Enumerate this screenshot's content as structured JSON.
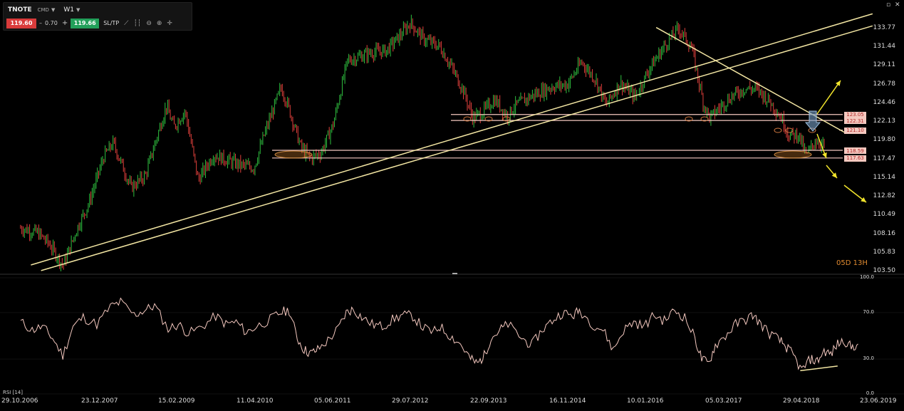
{
  "toolbar": {
    "symbol": "TNOTE",
    "market_type": "CMD",
    "timeframe": "W1",
    "sell_price": "119.60",
    "spread": "0.70",
    "buy_price": "119.66",
    "sltp_label": "SL/TP",
    "tool_icons": [
      "line-icon",
      "chart-style-icon",
      "zoom-out-icon",
      "zoom-in-icon",
      "crosshair-icon"
    ]
  },
  "window_controls": [
    "restore-icon",
    "close-icon"
  ],
  "countdown": "05D 13H",
  "price_boxes": [
    "123.05",
    "122.31",
    "121.10",
    "118.59",
    "117.63"
  ],
  "rsi_title": "RSI [14]",
  "colors": {
    "bull": "#2fbf3f",
    "bear": "#e0403c",
    "trendline": "#f3e6a3",
    "level_line": "#f4c8bf",
    "arrow": "#f2e52c",
    "rsi_line": "#f4c8bf",
    "countdown": "#e08a30",
    "sell_bg": "#d93b3b",
    "buy_bg": "#22a05a"
  },
  "chart_data": [
    {
      "type": "candlestick",
      "title": "TNOTE",
      "timeframe": "W1",
      "x_tick_labels": [
        "29.10.2006",
        "23.12.2007",
        "15.02.2009",
        "11.04.2010",
        "05.06.2011",
        "29.07.2012",
        "22.09.2013",
        "16.11.2014",
        "10.01.2016",
        "05.03.2017",
        "29.04.2018",
        "23.06.2019"
      ],
      "y_tick_labels": [
        "133.77",
        "131.44",
        "129.11",
        "126.78",
        "124.46",
        "122.13",
        "119.80",
        "117.47",
        "115.14",
        "112.82",
        "110.49",
        "108.16",
        "105.83",
        "103.50"
      ],
      "ylim": [
        103.5,
        135.0
      ],
      "close_path": [
        [
          "2006-10-29",
          108.9
        ],
        [
          "2007-02-01",
          108.3
        ],
        [
          "2007-04-01",
          106.9
        ],
        [
          "2007-06-15",
          104.2
        ],
        [
          "2007-09-01",
          109.0
        ],
        [
          "2007-11-01",
          112.0
        ],
        [
          "2008-01-20",
          117.8
        ],
        [
          "2008-03-10",
          119.5
        ],
        [
          "2008-06-15",
          113.9
        ],
        [
          "2008-09-01",
          115.5
        ],
        [
          "2008-12-21",
          124.1
        ],
        [
          "2009-02-01",
          121.5
        ],
        [
          "2009-04-01",
          123.5
        ],
        [
          "2009-06-10",
          114.9
        ],
        [
          "2009-09-01",
          118.0
        ],
        [
          "2009-12-01",
          117.2
        ],
        [
          "2010-02-01",
          116.7
        ],
        [
          "2010-04-05",
          116.4
        ],
        [
          "2010-06-01",
          120.6
        ],
        [
          "2010-08-29",
          126.4
        ],
        [
          "2010-10-01",
          124.5
        ],
        [
          "2010-12-15",
          118.9
        ],
        [
          "2011-02-05",
          117.6
        ],
        [
          "2011-04-01",
          118.3
        ],
        [
          "2011-06-05",
          121.8
        ],
        [
          "2011-08-21",
          129.8
        ],
        [
          "2011-10-15",
          130.2
        ],
        [
          "2012-01-01",
          130.8
        ],
        [
          "2012-03-15",
          131.0
        ],
        [
          "2012-05-30",
          132.9
        ],
        [
          "2012-07-24",
          134.5
        ],
        [
          "2012-10-01",
          132.5
        ],
        [
          "2012-12-30",
          131.5
        ],
        [
          "2013-03-01",
          129.0
        ],
        [
          "2013-05-05",
          126.0
        ],
        [
          "2013-06-25",
          122.6
        ],
        [
          "2013-08-15",
          123.3
        ],
        [
          "2013-10-20",
          124.9
        ],
        [
          "2013-12-30",
          122.8
        ],
        [
          "2014-02-01",
          124.0
        ],
        [
          "2014-05-01",
          125.3
        ],
        [
          "2014-08-20",
          126.5
        ],
        [
          "2014-11-16",
          126.8
        ],
        [
          "2015-02-01",
          129.6
        ],
        [
          "2015-04-15",
          127.4
        ],
        [
          "2015-06-10",
          124.2
        ],
        [
          "2015-08-25",
          127.0
        ],
        [
          "2015-11-15",
          125.2
        ],
        [
          "2016-01-31",
          128.8
        ],
        [
          "2016-04-20",
          131.6
        ],
        [
          "2016-07-05",
          133.8
        ],
        [
          "2016-09-15",
          131.3
        ],
        [
          "2016-11-15",
          124.5
        ],
        [
          "2016-12-20",
          122.6
        ],
        [
          "2017-02-15",
          124.0
        ],
        [
          "2017-04-15",
          125.3
        ],
        [
          "2017-06-25",
          126.3
        ],
        [
          "2017-09-01",
          126.2
        ],
        [
          "2017-11-10",
          124.6
        ],
        [
          "2018-01-10",
          122.6
        ],
        [
          "2018-02-20",
          120.4
        ],
        [
          "2018-04-10",
          120.6
        ],
        [
          "2018-05-20",
          117.9
        ],
        [
          "2018-07-10",
          119.8
        ],
        [
          "2018-09-01",
          119.1
        ]
      ],
      "annotations": {
        "countdown_label": "05D 13H",
        "horizontal_levels": [
          123.05,
          122.31,
          121.1,
          118.59,
          117.63
        ],
        "price_boxes": [
          "123.05",
          "122.31",
          "121.10",
          "118.59",
          "117.63"
        ],
        "trendlines": [
          {
            "from": [
              "2006-12-24",
              104.3
            ],
            "to": [
              "2019-05-12",
              135.6
            ]
          },
          {
            "from": [
              "2007-02-18",
              103.6
            ],
            "to": [
              "2019-05-12",
              134.1
            ]
          },
          {
            "from": [
              "2016-03-06",
              133.9
            ],
            "to": [
              "2018-12-23",
              120.7
            ]
          }
        ],
        "ellipses_markers": [
          "2010-08",
          "2013-05",
          "2013-08",
          "2014-01",
          "2016-11",
          "2017-02",
          "2018-03",
          "2018-05",
          "2018-06",
          "2018-12"
        ],
        "arrows": [
          "down-arrow at 2018-12",
          "projection up-right",
          "projection down-right"
        ]
      },
      "grid": false
    },
    {
      "type": "line",
      "title": "RSI [14]",
      "y_tick_labels": [
        "100.0",
        "70.0",
        "30.0",
        "0.0"
      ],
      "ylim": [
        0,
        100
      ],
      "series": [
        {
          "name": "RSI [14]",
          "values": [
            [
              2006.83,
              62
            ],
            [
              2007.0,
              55
            ],
            [
              2007.15,
              58
            ],
            [
              2007.3,
              48
            ],
            [
              2007.45,
              33
            ],
            [
              2007.6,
              58
            ],
            [
              2007.75,
              66
            ],
            [
              2007.95,
              60
            ],
            [
              2008.15,
              75
            ],
            [
              2008.3,
              79
            ],
            [
              2008.5,
              68
            ],
            [
              2008.65,
              72
            ],
            [
              2008.8,
              76
            ],
            [
              2009.0,
              56
            ],
            [
              2009.15,
              60
            ],
            [
              2009.3,
              52
            ],
            [
              2009.5,
              58
            ],
            [
              2009.7,
              67
            ],
            [
              2009.85,
              60
            ],
            [
              2010.0,
              62
            ],
            [
              2010.15,
              53
            ],
            [
              2010.3,
              58
            ],
            [
              2010.5,
              64
            ],
            [
              2010.65,
              70
            ],
            [
              2010.78,
              72
            ],
            [
              2010.9,
              48
            ],
            [
              2011.0,
              38
            ],
            [
              2011.1,
              35
            ],
            [
              2011.2,
              38
            ],
            [
              2011.35,
              46
            ],
            [
              2011.5,
              56
            ],
            [
              2011.62,
              70
            ],
            [
              2011.72,
              73
            ],
            [
              2011.85,
              66
            ],
            [
              2012.0,
              60
            ],
            [
              2012.15,
              58
            ],
            [
              2012.3,
              64
            ],
            [
              2012.45,
              68
            ],
            [
              2012.6,
              67
            ],
            [
              2012.75,
              57
            ],
            [
              2012.9,
              53
            ],
            [
              2013.0,
              58
            ],
            [
              2013.15,
              50
            ],
            [
              2013.3,
              43
            ],
            [
              2013.45,
              30
            ],
            [
              2013.55,
              26
            ],
            [
              2013.65,
              33
            ],
            [
              2013.75,
              48
            ],
            [
              2013.9,
              56
            ],
            [
              2014.0,
              60
            ],
            [
              2014.2,
              48
            ],
            [
              2014.35,
              42
            ],
            [
              2014.5,
              55
            ],
            [
              2014.65,
              63
            ],
            [
              2014.8,
              70
            ],
            [
              2014.95,
              67
            ],
            [
              2015.05,
              72
            ],
            [
              2015.25,
              60
            ],
            [
              2015.4,
              55
            ],
            [
              2015.55,
              38
            ],
            [
              2015.7,
              55
            ],
            [
              2015.85,
              62
            ],
            [
              2016.0,
              58
            ],
            [
              2016.15,
              68
            ],
            [
              2016.3,
              63
            ],
            [
              2016.45,
              72
            ],
            [
              2016.6,
              66
            ],
            [
              2016.75,
              48
            ],
            [
              2016.85,
              30
            ],
            [
              2016.95,
              26
            ],
            [
              2017.05,
              42
            ],
            [
              2017.2,
              50
            ],
            [
              2017.35,
              60
            ],
            [
              2017.5,
              64
            ],
            [
              2017.6,
              68
            ],
            [
              2017.72,
              60
            ],
            [
              2017.85,
              52
            ],
            [
              2018.0,
              46
            ],
            [
              2018.1,
              40
            ],
            [
              2018.2,
              33
            ],
            [
              2018.32,
              20
            ],
            [
              2018.45,
              30
            ],
            [
              2018.55,
              28
            ],
            [
              2018.65,
              37
            ],
            [
              2018.75,
              34
            ],
            [
              2018.85,
              43
            ],
            [
              2018.95,
              46
            ],
            [
              2019.05,
              40
            ],
            [
              2019.15,
              43
            ]
          ]
        }
      ],
      "annotations": {
        "support_line": [
          [
            2018.3,
            20
          ],
          [
            2018.85,
            24
          ]
        ]
      }
    }
  ]
}
